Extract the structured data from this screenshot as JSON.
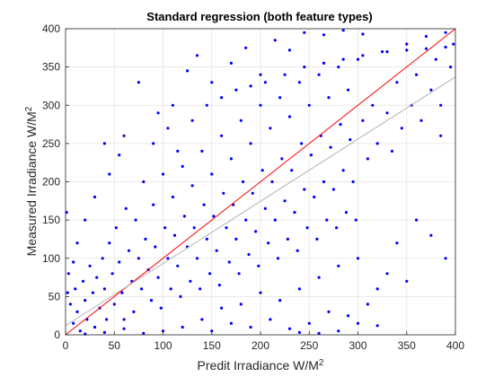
{
  "chart_data": {
    "type": "scatter",
    "title": "Standard regression (both feature types)",
    "xlabel": "Predit Irradiance W/M",
    "xlabel_sup": "2",
    "ylabel": "Measured Irradiance W/M",
    "ylabel_sup": "2",
    "xlim": [
      0,
      400
    ],
    "ylim": [
      0,
      400
    ],
    "xticks": [
      "0",
      "50",
      "100",
      "150",
      "200",
      "250",
      "300",
      "350",
      "400"
    ],
    "yticks": [
      "0",
      "50",
      "100",
      "150",
      "200",
      "250",
      "300",
      "350",
      "400"
    ],
    "grid": true,
    "legend": "none",
    "series": [
      {
        "kind": "points",
        "color": "#0000ff",
        "points": [
          [
            5,
            40
          ],
          [
            8,
            15
          ],
          [
            10,
            60
          ],
          [
            12,
            30
          ],
          [
            15,
            5
          ],
          [
            18,
            70
          ],
          [
            20,
            45
          ],
          [
            22,
            20
          ],
          [
            25,
            90
          ],
          [
            28,
            55
          ],
          [
            30,
            10
          ],
          [
            32,
            75
          ],
          [
            35,
            35
          ],
          [
            38,
            100
          ],
          [
            40,
            60
          ],
          [
            42,
            20
          ],
          [
            45,
            120
          ],
          [
            48,
            80
          ],
          [
            50,
            40
          ],
          [
            52,
            140
          ],
          [
            55,
            95
          ],
          [
            58,
            55
          ],
          [
            60,
            20
          ],
          [
            62,
            165
          ],
          [
            65,
            110
          ],
          [
            68,
            70
          ],
          [
            70,
            30
          ],
          [
            72,
            150
          ],
          [
            75,
            100
          ],
          [
            78,
            60
          ],
          [
            80,
            200
          ],
          [
            82,
            125
          ],
          [
            85,
            85
          ],
          [
            88,
            45
          ],
          [
            90,
            170
          ],
          [
            92,
            115
          ],
          [
            95,
            75
          ],
          [
            98,
            35
          ],
          [
            100,
            210
          ],
          [
            102,
            140
          ],
          [
            105,
            100
          ],
          [
            108,
            60
          ],
          [
            110,
            180
          ],
          [
            112,
            130
          ],
          [
            115,
            90
          ],
          [
            118,
            50
          ],
          [
            120,
            220
          ],
          [
            122,
            155
          ],
          [
            125,
            115
          ],
          [
            128,
            70
          ],
          [
            130,
            195
          ],
          [
            132,
            140
          ],
          [
            135,
            100
          ],
          [
            138,
            60
          ],
          [
            140,
            240
          ],
          [
            142,
            170
          ],
          [
            145,
            125
          ],
          [
            148,
            80
          ],
          [
            150,
            210
          ],
          [
            152,
            155
          ],
          [
            155,
            110
          ],
          [
            158,
            65
          ],
          [
            160,
            260
          ],
          [
            162,
            185
          ],
          [
            165,
            140
          ],
          [
            168,
            95
          ],
          [
            170,
            230
          ],
          [
            172,
            170
          ],
          [
            175,
            125
          ],
          [
            178,
            80
          ],
          [
            180,
            280
          ],
          [
            182,
            200
          ],
          [
            185,
            150
          ],
          [
            188,
            105
          ],
          [
            190,
            250
          ],
          [
            192,
            185
          ],
          [
            195,
            135
          ],
          [
            198,
            90
          ],
          [
            200,
            300
          ],
          [
            202,
            215
          ],
          [
            205,
            165
          ],
          [
            208,
            120
          ],
          [
            210,
            270
          ],
          [
            212,
            200
          ],
          [
            215,
            150
          ],
          [
            218,
            100
          ],
          [
            220,
            310
          ],
          [
            222,
            230
          ],
          [
            225,
            175
          ],
          [
            228,
            125
          ],
          [
            230,
            285
          ],
          [
            232,
            215
          ],
          [
            235,
            160
          ],
          [
            238,
            110
          ],
          [
            240,
            330
          ],
          [
            242,
            250
          ],
          [
            245,
            190
          ],
          [
            248,
            140
          ],
          [
            250,
            300
          ],
          [
            252,
            235
          ],
          [
            255,
            180
          ],
          [
            258,
            125
          ],
          [
            260,
            340
          ],
          [
            262,
            260
          ],
          [
            265,
            200
          ],
          [
            268,
            150
          ],
          [
            270,
            310
          ],
          [
            272,
            245
          ],
          [
            275,
            190
          ],
          [
            278,
            140
          ],
          [
            280,
            350
          ],
          [
            282,
            275
          ],
          [
            285,
            215
          ],
          [
            288,
            160
          ],
          [
            290,
            320
          ],
          [
            292,
            255
          ],
          [
            295,
            200
          ],
          [
            298,
            150
          ],
          [
            300,
            360
          ],
          [
            305,
            280
          ],
          [
            310,
            230
          ],
          [
            315,
            300
          ],
          [
            320,
            250
          ],
          [
            325,
            370
          ],
          [
            330,
            290
          ],
          [
            335,
            240
          ],
          [
            340,
            330
          ],
          [
            345,
            270
          ],
          [
            350,
            380
          ],
          [
            355,
            300
          ],
          [
            360,
            340
          ],
          [
            365,
            280
          ],
          [
            370,
            390
          ],
          [
            375,
            320
          ],
          [
            380,
            360
          ],
          [
            385,
            300
          ],
          [
            390,
            395
          ],
          [
            395,
            350
          ],
          [
            398,
            380
          ],
          [
            60,
            260
          ],
          [
            75,
            330
          ],
          [
            95,
            290
          ],
          [
            110,
            300
          ],
          [
            125,
            345
          ],
          [
            135,
            365
          ],
          [
            150,
            330
          ],
          [
            170,
            355
          ],
          [
            185,
            375
          ],
          [
            200,
            340
          ],
          [
            215,
            385
          ],
          [
            230,
            372
          ],
          [
            245,
            395
          ],
          [
            265,
            392
          ],
          [
            285,
            398
          ],
          [
            305,
            393
          ],
          [
            45,
            210
          ],
          [
            55,
            235
          ],
          [
            30,
            180
          ],
          [
            20,
            150
          ],
          [
            12,
            120
          ],
          [
            8,
            95
          ],
          [
            3,
            80
          ],
          [
            2,
            55
          ],
          [
            1,
            160
          ],
          [
            40,
            250
          ],
          [
            150,
            5
          ],
          [
            170,
            15
          ],
          [
            190,
            10
          ],
          [
            210,
            20
          ],
          [
            230,
            8
          ],
          [
            250,
            15
          ],
          [
            270,
            30
          ],
          [
            290,
            25
          ],
          [
            310,
            40
          ],
          [
            320,
            12
          ],
          [
            180,
            40
          ],
          [
            200,
            55
          ],
          [
            220,
            45
          ],
          [
            240,
            60
          ],
          [
            260,
            75
          ],
          [
            280,
            90
          ],
          [
            300,
            100
          ],
          [
            140,
            20
          ],
          [
            160,
            35
          ],
          [
            120,
            10
          ],
          [
            100,
            5
          ],
          [
            80,
            2
          ],
          [
            60,
            8
          ],
          [
            40,
            3
          ],
          [
            20,
            1
          ],
          [
            90,
            250
          ],
          [
            105,
            270
          ],
          [
            115,
            240
          ],
          [
            130,
            280
          ],
          [
            145,
            300
          ],
          [
            160,
            310
          ],
          [
            175,
            320
          ],
          [
            190,
            325
          ],
          [
            205,
            330
          ],
          [
            225,
            340
          ],
          [
            245,
            350
          ],
          [
            265,
            355
          ],
          [
            285,
            360
          ],
          [
            305,
            365
          ],
          [
            330,
            370
          ],
          [
            350,
            372
          ],
          [
            370,
            374
          ],
          [
            390,
            376
          ],
          [
            360,
            150
          ],
          [
            375,
            130
          ],
          [
            385,
            260
          ],
          [
            390,
            100
          ],
          [
            340,
            120
          ],
          [
            330,
            80
          ],
          [
            320,
            60
          ],
          [
            350,
            70
          ],
          [
            300,
            15
          ],
          [
            280,
            5
          ],
          [
            260,
            2
          ],
          [
            240,
            3
          ]
        ]
      },
      {
        "kind": "line",
        "color": "#ff0000",
        "points": [
          [
            0,
            0
          ],
          [
            400,
            400
          ]
        ]
      },
      {
        "kind": "line",
        "color": "#b4b4b4",
        "points": [
          [
            0,
            12
          ],
          [
            400,
            337
          ]
        ]
      }
    ]
  }
}
